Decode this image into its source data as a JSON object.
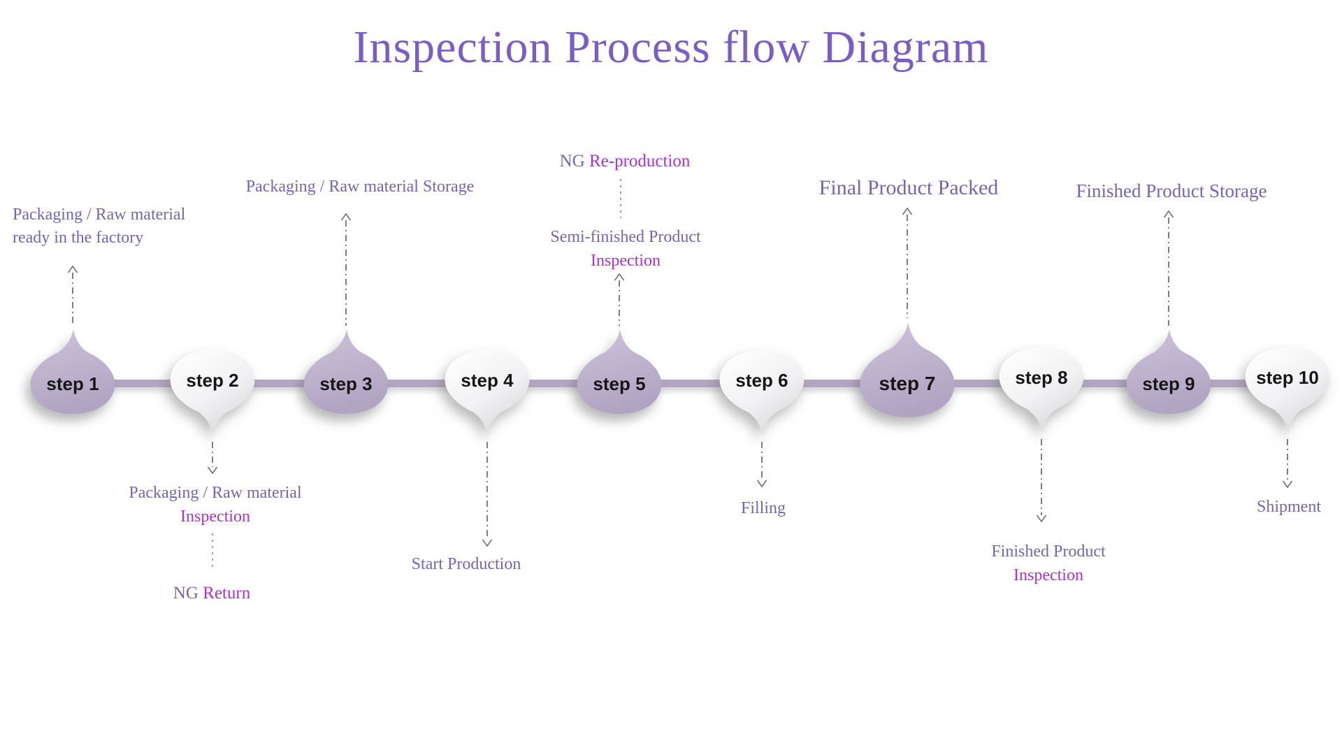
{
  "title": "Inspection Process flow Diagram",
  "colors": {
    "title": "#7a5ec6",
    "purple_text": "#7764b4",
    "magenta_text": "#ad30d7",
    "bubble_purple_light": "#cdc3d9",
    "bubble_purple_dark": "#b1a4c3",
    "bubble_white_light": "#ffffff",
    "bubble_white_mid": "#f1f0f2",
    "bubble_white_dark": "#d5d4d7",
    "connector": "#b3a6c4",
    "arrow": "#707070",
    "dash": "#9f9f9f",
    "step_label": "#161616"
  },
  "steps": [
    {
      "id": 1,
      "label": "step 1",
      "variant": "purple",
      "annotation": {
        "position": "above",
        "lines": [
          [
            {
              "text": "Packaging / Raw material",
              "color": "purple"
            }
          ],
          [
            {
              "text": "ready in the factory",
              "color": "purple"
            }
          ]
        ]
      }
    },
    {
      "id": 2,
      "label": "step 2",
      "variant": "white",
      "annotation": {
        "position": "below",
        "lines": [
          [
            {
              "text": "Packaging / Raw material",
              "color": "purple"
            }
          ],
          [
            {
              "text": "Inspection",
              "color": "magenta"
            }
          ]
        ]
      },
      "extra": {
        "position": "below",
        "lines": [
          [
            {
              "text": "NG ",
              "color": "purple"
            },
            {
              "text": "Return",
              "color": "magenta"
            }
          ]
        ]
      }
    },
    {
      "id": 3,
      "label": "step 3",
      "variant": "purple",
      "annotation": {
        "position": "above",
        "lines": [
          [
            {
              "text": "Packaging / Raw material Storage",
              "color": "purple"
            }
          ]
        ]
      }
    },
    {
      "id": 4,
      "label": "step 4",
      "variant": "white",
      "annotation": {
        "position": "below",
        "lines": [
          [
            {
              "text": "Start Production",
              "color": "purple"
            }
          ]
        ]
      }
    },
    {
      "id": 5,
      "label": "step 5",
      "variant": "purple",
      "annotation": {
        "position": "above",
        "lines": [
          [
            {
              "text": "Semi-finished Product",
              "color": "purple"
            }
          ],
          [
            {
              "text": "Inspection",
              "color": "magenta"
            }
          ]
        ]
      },
      "extra": {
        "position": "above",
        "lines": [
          [
            {
              "text": "NG ",
              "color": "purple"
            },
            {
              "text": "Re-production",
              "color": "magenta"
            }
          ]
        ]
      }
    },
    {
      "id": 6,
      "label": "step 6",
      "variant": "white",
      "annotation": {
        "position": "below",
        "lines": [
          [
            {
              "text": "Filling",
              "color": "purple"
            }
          ]
        ]
      }
    },
    {
      "id": 7,
      "label": "step 7",
      "variant": "purple",
      "annotation": {
        "position": "above",
        "lines": [
          [
            {
              "text": "Final Product Packed",
              "color": "purple"
            }
          ]
        ]
      }
    },
    {
      "id": 8,
      "label": "step 8",
      "variant": "white",
      "annotation": {
        "position": "below",
        "lines": [
          [
            {
              "text": "Finished Product",
              "color": "purple"
            }
          ],
          [
            {
              "text": "Inspection",
              "color": "magenta"
            }
          ]
        ]
      }
    },
    {
      "id": 9,
      "label": "step 9",
      "variant": "purple",
      "annotation": {
        "position": "above",
        "lines": [
          [
            {
              "text": "Finished Product Storage",
              "color": "purple"
            }
          ]
        ]
      }
    },
    {
      "id": 10,
      "label": "step 10",
      "variant": "white",
      "annotation": {
        "position": "below",
        "lines": [
          [
            {
              "text": "Shipment",
              "color": "purple"
            }
          ]
        ]
      }
    }
  ]
}
